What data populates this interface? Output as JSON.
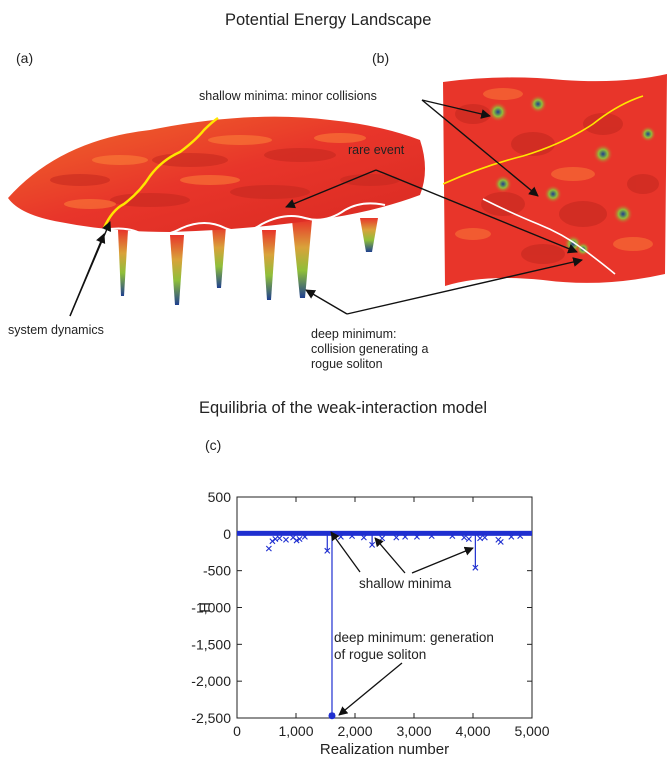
{
  "top": {
    "title": "Potential Energy Landscape",
    "panel_a_label": "(a)",
    "panel_b_label": "(b)",
    "annotations": {
      "shallow_minima": "shallow minima: minor collisions",
      "rare_event": "rare event",
      "system_dynamics": "system dynamics",
      "deep_minimum_lines": [
        "deep minimum:",
        "collision generating a",
        "rogue soliton"
      ]
    }
  },
  "bottom": {
    "title": "Equilibria of the weak-interaction model",
    "panel_c_label": "(c)",
    "annotations": {
      "shallow_minima": "shallow minima",
      "deep_minimum_lines": [
        "deep minimum: generation",
        "of rogue soliton"
      ]
    }
  },
  "colors": {
    "series": "#1f2fd0",
    "surface_red": "#e8352a",
    "surface_orange": "#f06a2a",
    "trajectory_yellow": "#ffe600",
    "trajectory_white": "#ffffff",
    "valley_green": "#8fbf3a",
    "valley_blue": "#1f3f8f"
  },
  "chart_data": {
    "type": "scatter",
    "title": "Equilibria of the weak-interaction model",
    "xlabel": "Realization number",
    "ylabel": "H",
    "xlim": [
      0,
      5000
    ],
    "ylim": [
      -2500,
      500
    ],
    "xticks": [
      0,
      1000,
      2000,
      3000,
      4000,
      5000
    ],
    "xtick_labels": [
      "0",
      "1,000",
      "2,000",
      "3,000",
      "4,000",
      "5,000"
    ],
    "yticks": [
      500,
      0,
      -500,
      -1000,
      -1500,
      -2000,
      -2500
    ],
    "ytick_labels": [
      "500",
      "0",
      "-500",
      "-1,000",
      "-1,500",
      "-2,000",
      "-2,500"
    ],
    "grid": false,
    "series": [
      {
        "marker": "x",
        "x": [
          540,
          600,
          650,
          720,
          830,
          950,
          1010,
          1060,
          1150,
          1530,
          1610,
          1760,
          1950,
          2150,
          2290,
          2460,
          2700,
          2850,
          3050,
          3300,
          3650,
          3850,
          3930,
          4040,
          4120,
          4200,
          4430,
          4470,
          4650,
          4800
        ],
        "y": [
          -200,
          -100,
          -70,
          -60,
          -80,
          -50,
          -90,
          -70,
          -40,
          -230,
          -2470,
          -40,
          -30,
          -50,
          -150,
          -60,
          -50,
          -40,
          -40,
          -30,
          -30,
          -50,
          -70,
          -460,
          -60,
          -50,
          -80,
          -110,
          -40,
          -30
        ]
      }
    ],
    "highlighted_point": {
      "x": 1610,
      "y": -2470
    },
    "stems_x": [
      1530,
      1610,
      2290,
      4040
    ]
  }
}
